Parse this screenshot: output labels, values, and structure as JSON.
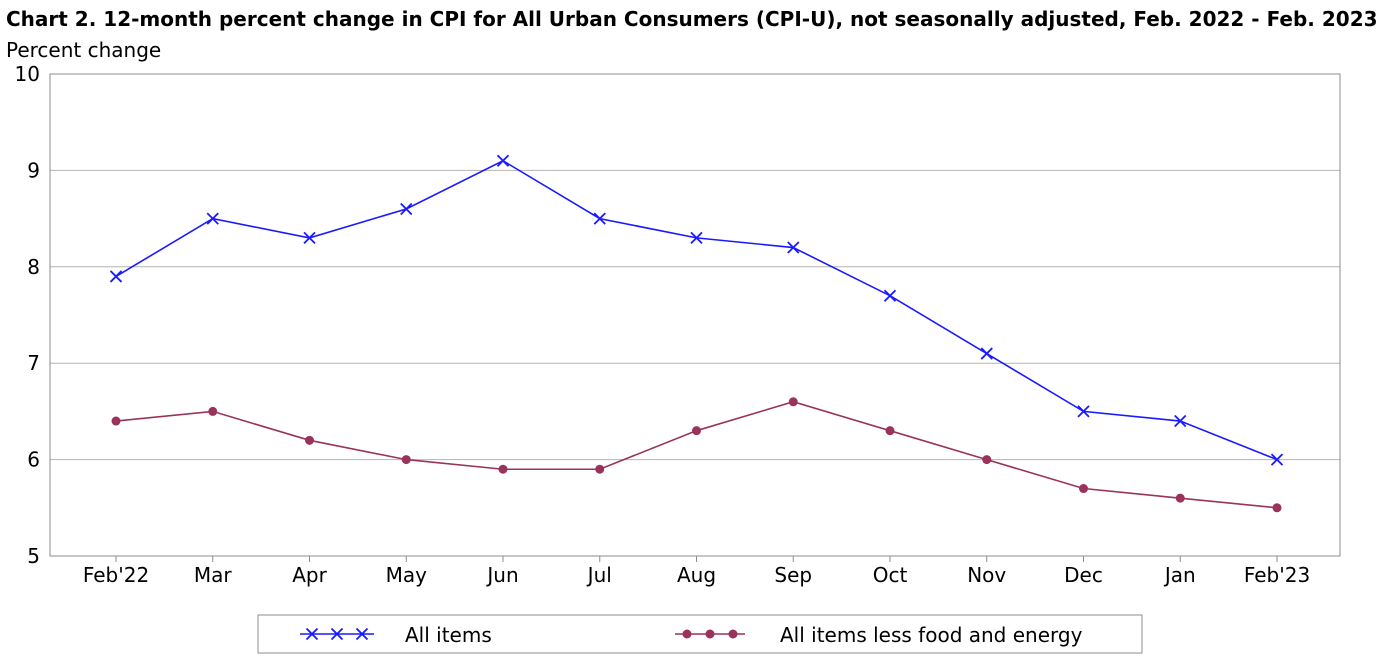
{
  "chart_data": {
    "type": "line",
    "title": "Chart 2. 12-month percent change in CPI for All Urban Consumers (CPI-U), not seasonally adjusted, Feb. 2022 - Feb. 2023",
    "ylabel": "Percent change",
    "xlabel": "",
    "ylim": [
      5,
      10
    ],
    "yticks": [
      5,
      6,
      7,
      8,
      9,
      10
    ],
    "grid": true,
    "legend_position": "bottom",
    "categories": [
      "Feb'22",
      "Mar",
      "Apr",
      "May",
      "Jun",
      "Jul",
      "Aug",
      "Sep",
      "Oct",
      "Nov",
      "Dec",
      "Jan",
      "Feb'23"
    ],
    "series": [
      {
        "name": "All items",
        "color": "#1a1aff",
        "marker": "x",
        "values": [
          7.9,
          8.5,
          8.3,
          8.6,
          9.1,
          8.5,
          8.3,
          8.2,
          7.7,
          7.1,
          6.5,
          6.4,
          6.0
        ]
      },
      {
        "name": "All items less food and energy",
        "color": "#99335c",
        "marker": "circle",
        "values": [
          6.4,
          6.5,
          6.2,
          6.0,
          5.9,
          5.9,
          6.3,
          6.6,
          6.3,
          6.0,
          5.7,
          5.6,
          5.5
        ]
      }
    ]
  }
}
